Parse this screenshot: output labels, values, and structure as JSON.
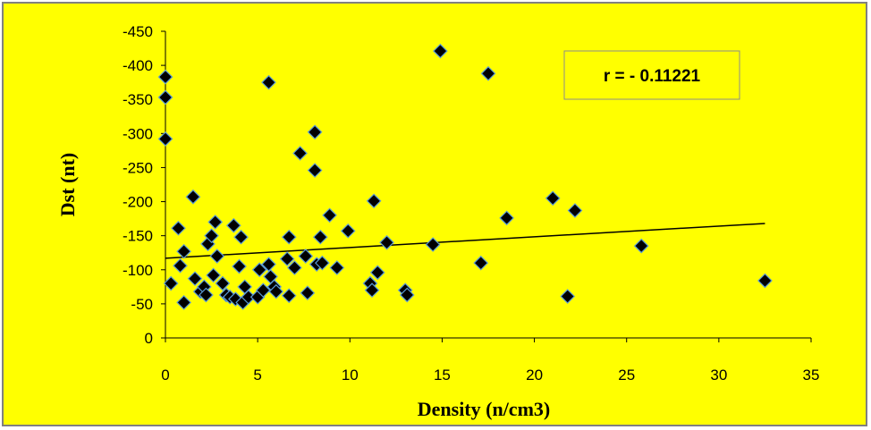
{
  "chart_data": {
    "type": "scatter",
    "xlabel": "Density (n/cm3)",
    "ylabel": "Dst (nt)",
    "xlim": [
      0,
      35
    ],
    "ylim": [
      0,
      -450
    ],
    "xticks": [
      0,
      5,
      10,
      15,
      20,
      25,
      30,
      35
    ],
    "yticks": [
      0,
      -50,
      -100,
      -150,
      -200,
      -250,
      -300,
      -350,
      -400,
      -450
    ],
    "grid": false,
    "annotation": "r = - 0.11221",
    "colors": {
      "background": "#ffff00",
      "marker": "#000000",
      "marker_edge": "#5b9bd5",
      "trendline": "#000000",
      "frame": "#808080"
    },
    "trendline": {
      "x": [
        0,
        32.5
      ],
      "y": [
        -117,
        -168
      ]
    },
    "points": [
      {
        "x": 0,
        "y": -383
      },
      {
        "x": 0,
        "y": -353
      },
      {
        "x": 0,
        "y": -292
      },
      {
        "x": 0.3,
        "y": -80
      },
      {
        "x": 0.7,
        "y": -161
      },
      {
        "x": 0.8,
        "y": -106
      },
      {
        "x": 1.0,
        "y": -127
      },
      {
        "x": 1.0,
        "y": -52
      },
      {
        "x": 1.5,
        "y": -207
      },
      {
        "x": 1.6,
        "y": -87
      },
      {
        "x": 1.9,
        "y": -68
      },
      {
        "x": 2.1,
        "y": -75
      },
      {
        "x": 2.2,
        "y": -63
      },
      {
        "x": 2.3,
        "y": -138
      },
      {
        "x": 2.5,
        "y": -150
      },
      {
        "x": 2.6,
        "y": -92
      },
      {
        "x": 2.7,
        "y": -170
      },
      {
        "x": 2.8,
        "y": -120
      },
      {
        "x": 3.1,
        "y": -80
      },
      {
        "x": 3.3,
        "y": -63
      },
      {
        "x": 3.5,
        "y": -60
      },
      {
        "x": 3.7,
        "y": -165
      },
      {
        "x": 3.8,
        "y": -57
      },
      {
        "x": 4.0,
        "y": -105
      },
      {
        "x": 4.1,
        "y": -148
      },
      {
        "x": 4.2,
        "y": -52
      },
      {
        "x": 4.3,
        "y": -75
      },
      {
        "x": 4.5,
        "y": -60
      },
      {
        "x": 5.0,
        "y": -60
      },
      {
        "x": 5.1,
        "y": -100
      },
      {
        "x": 5.3,
        "y": -70
      },
      {
        "x": 5.6,
        "y": -375
      },
      {
        "x": 5.6,
        "y": -108
      },
      {
        "x": 5.7,
        "y": -90
      },
      {
        "x": 5.9,
        "y": -75
      },
      {
        "x": 6.0,
        "y": -68
      },
      {
        "x": 6.6,
        "y": -116
      },
      {
        "x": 6.7,
        "y": -148
      },
      {
        "x": 6.7,
        "y": -62
      },
      {
        "x": 7.0,
        "y": -103
      },
      {
        "x": 7.3,
        "y": -271
      },
      {
        "x": 7.6,
        "y": -120
      },
      {
        "x": 7.7,
        "y": -66
      },
      {
        "x": 8.1,
        "y": -302
      },
      {
        "x": 8.1,
        "y": -246
      },
      {
        "x": 8.2,
        "y": -108
      },
      {
        "x": 8.4,
        "y": -148
      },
      {
        "x": 8.5,
        "y": -110
      },
      {
        "x": 8.9,
        "y": -180
      },
      {
        "x": 9.3,
        "y": -103
      },
      {
        "x": 9.9,
        "y": -157
      },
      {
        "x": 11.1,
        "y": -80
      },
      {
        "x": 11.2,
        "y": -70
      },
      {
        "x": 11.3,
        "y": -201
      },
      {
        "x": 11.5,
        "y": -96
      },
      {
        "x": 12.0,
        "y": -140
      },
      {
        "x": 13.0,
        "y": -70
      },
      {
        "x": 13.1,
        "y": -63
      },
      {
        "x": 14.5,
        "y": -137
      },
      {
        "x": 14.9,
        "y": -421
      },
      {
        "x": 17.1,
        "y": -110
      },
      {
        "x": 17.5,
        "y": -388
      },
      {
        "x": 18.5,
        "y": -176
      },
      {
        "x": 21.0,
        "y": -205
      },
      {
        "x": 21.8,
        "y": -61
      },
      {
        "x": 22.2,
        "y": -187
      },
      {
        "x": 25.8,
        "y": -135
      },
      {
        "x": 32.5,
        "y": -84
      }
    ]
  }
}
